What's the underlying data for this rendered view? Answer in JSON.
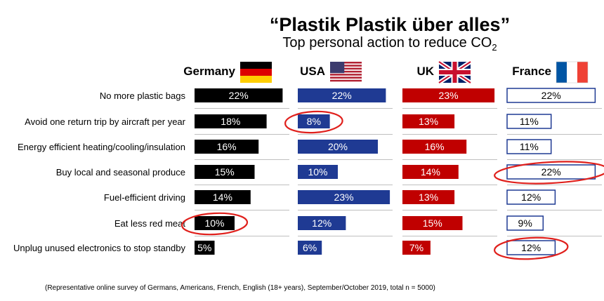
{
  "chart_data": {
    "type": "bar",
    "title": "“Plastik Plastik über alles”",
    "subtitle": "Top personal action to reduce CO",
    "subtitle_subscript": "2",
    "categories": [
      "No more plastic bags",
      "Avoid one return trip by aircraft per year",
      "Energy efficient heating/cooling/insulation",
      "Buy local and seasonal produce",
      "Fuel-efficient driving",
      "Eat less red meat",
      "Unplug unused electronics to stop standby"
    ],
    "series": [
      {
        "name": "Germany",
        "values": [
          22,
          18,
          16,
          15,
          14,
          10,
          5
        ],
        "labels": [
          "22%",
          "18%",
          "16%",
          "15%",
          "14%",
          "10%",
          "5%"
        ],
        "fill": "#000000",
        "text": "#ffffff",
        "flag": "germany-flag",
        "circled": [
          5
        ]
      },
      {
        "name": "USA",
        "values": [
          22,
          8,
          20,
          10,
          23,
          12,
          6
        ],
        "labels": [
          "22%",
          "8%",
          "20%",
          "10%",
          "23%",
          "12%",
          "6%"
        ],
        "fill": "#1f3a93",
        "text": "#ffffff",
        "flag": "usa-flag",
        "circled": [
          1
        ]
      },
      {
        "name": "UK",
        "values": [
          23,
          13,
          16,
          14,
          13,
          15,
          7
        ],
        "labels": [
          "23%",
          "13%",
          "16%",
          "14%",
          "13%",
          "15%",
          "7%"
        ],
        "fill": "#c00000",
        "text": "#ffffff",
        "flag": "uk-flag",
        "circled": []
      },
      {
        "name": "France",
        "values": [
          22,
          11,
          11,
          22,
          12,
          9,
          12
        ],
        "labels": [
          "22%",
          "11%",
          "11%",
          "22%",
          "12%",
          "9%",
          "12%"
        ],
        "fill": "#ffffff",
        "stroke": "#1f3a93",
        "text": "#000000",
        "flag": "france-flag",
        "circled": [
          3,
          6
        ]
      }
    ],
    "highlight_color": "#e0201c",
    "xlim": [
      0,
      23
    ],
    "grid": false,
    "footnote": "(Representative  online survey of Germans,  Americans, French, English  (18+ years), September/October  2019, total  n = 5000)"
  }
}
